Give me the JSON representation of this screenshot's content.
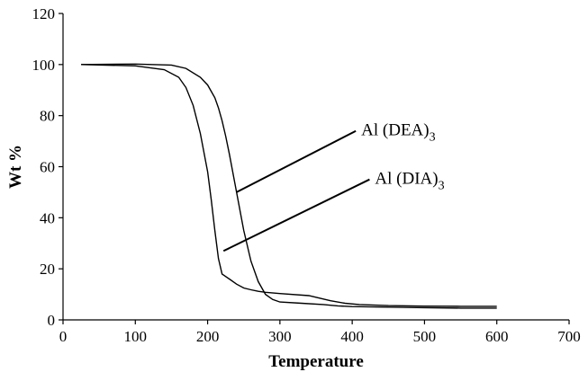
{
  "chart_data": {
    "type": "line",
    "xlabel": "Temperature",
    "ylabel": "Wt %",
    "xlim": [
      0,
      700
    ],
    "ylim": [
      0,
      120
    ],
    "xticks": [
      0,
      100,
      200,
      300,
      400,
      500,
      600,
      700
    ],
    "yticks": [
      0,
      20,
      40,
      60,
      80,
      100,
      120
    ],
    "grid": false,
    "legend": "none",
    "series": [
      {
        "label_base": "Al (DEA)",
        "label_sub": "3",
        "x": [
          25,
          100,
          150,
          170,
          190,
          200,
          210,
          215,
          220,
          225,
          230,
          240,
          250,
          260,
          270,
          280,
          290,
          300,
          330,
          360,
          380,
          400,
          450,
          500,
          550,
          600
        ],
        "y": [
          100,
          100.2,
          99.8,
          98.5,
          95,
          92,
          87,
          83,
          78,
          72,
          65,
          50,
          35,
          23,
          15,
          10,
          8,
          7,
          6.5,
          6,
          5.5,
          5.2,
          5,
          4.8,
          4.6,
          4.6
        ]
      },
      {
        "label_base": "Al (DIA)",
        "label_sub": "3",
        "x": [
          25,
          100,
          140,
          160,
          170,
          180,
          190,
          200,
          205,
          210,
          215,
          220,
          230,
          240,
          250,
          260,
          270,
          280,
          300,
          340,
          355,
          370,
          390,
          410,
          450,
          500,
          550,
          600
        ],
        "y": [
          100,
          99.5,
          98,
          95,
          91,
          84,
          73,
          58,
          47,
          35,
          24,
          18,
          16,
          14,
          12.5,
          11.8,
          11.2,
          10.8,
          10.3,
          9.5,
          8.5,
          7.5,
          6.5,
          6,
          5.6,
          5.4,
          5.3,
          5.3
        ]
      }
    ],
    "annotations": [
      {
        "text_base": "Al (DEA)",
        "text_sub": "3",
        "line_from": [
          240,
          50
        ],
        "line_to": [
          405,
          74
        ]
      },
      {
        "text_base": "Al (DIA)",
        "text_sub": "3",
        "line_from": [
          222,
          27
        ],
        "line_to": [
          424,
          55
        ]
      }
    ]
  }
}
